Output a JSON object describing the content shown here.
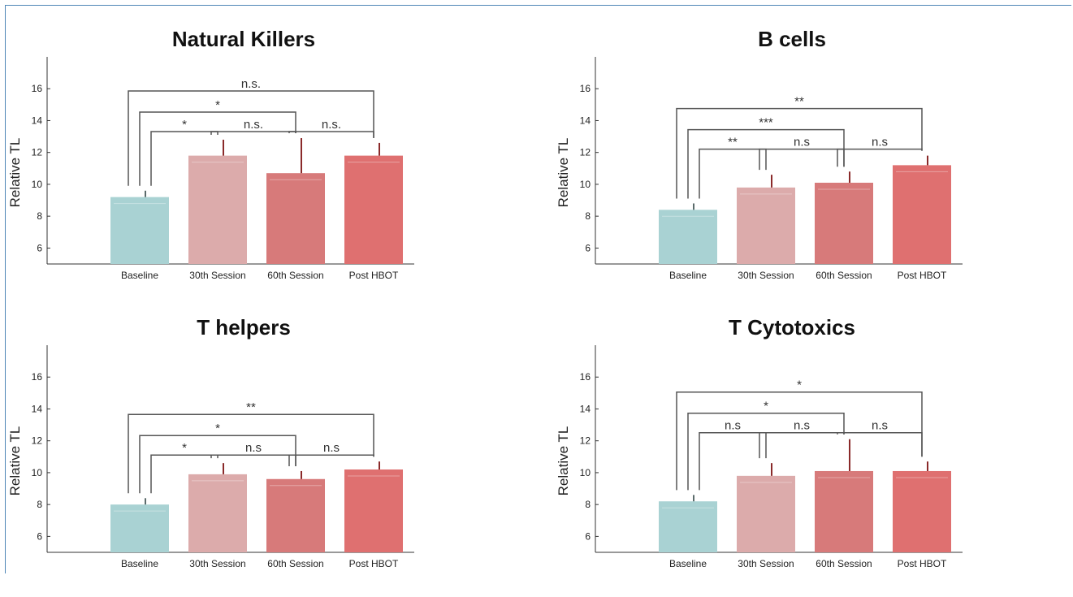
{
  "chart_data": [
    {
      "type": "bar",
      "title": "Natural Killers",
      "ylabel": "Relative TL",
      "ylim": [
        5,
        18
      ],
      "yticks": [
        6,
        8,
        10,
        12,
        14,
        16
      ],
      "categories": [
        "Baseline",
        "30th Session",
        "60th Session",
        "Post HBOT"
      ],
      "values": [
        9.2,
        11.8,
        10.7,
        11.8
      ],
      "error_upper": [
        9.6,
        12.8,
        12.9,
        12.6
      ],
      "colors": [
        "#a9d2d3",
        "#dcabab",
        "#d77a7a",
        "#df7070"
      ],
      "brackets": [
        {
          "from": 0,
          "to": 3,
          "label": "n.s.",
          "level": 3
        },
        {
          "from": 0,
          "to": 2,
          "label": "*",
          "level": 2
        },
        {
          "from": 0,
          "to": 1,
          "label": "*",
          "level": 1
        },
        {
          "from": 1,
          "to": 2,
          "label": "n.s.",
          "level": 1
        },
        {
          "from": 2,
          "to": 3,
          "label": "n.s.",
          "level": 1
        }
      ]
    },
    {
      "type": "bar",
      "title": "B cells",
      "ylabel": "Relative TL",
      "ylim": [
        5,
        18
      ],
      "yticks": [
        6,
        8,
        10,
        12,
        14,
        16
      ],
      "categories": [
        "Baseline",
        "30th Session",
        "60th Session",
        "Post HBOT"
      ],
      "values": [
        8.4,
        9.8,
        10.1,
        11.2
      ],
      "error_upper": [
        8.8,
        10.6,
        10.8,
        11.8
      ],
      "colors": [
        "#a9d2d3",
        "#dcabab",
        "#d77a7a",
        "#df7070"
      ],
      "brackets": [
        {
          "from": 0,
          "to": 3,
          "label": "**",
          "level": 3
        },
        {
          "from": 0,
          "to": 2,
          "label": "***",
          "level": 2
        },
        {
          "from": 0,
          "to": 1,
          "label": "**",
          "level": 1
        },
        {
          "from": 1,
          "to": 2,
          "label": "n.s",
          "level": 1
        },
        {
          "from": 2,
          "to": 3,
          "label": "n.s",
          "level": 1
        }
      ]
    },
    {
      "type": "bar",
      "title": "T helpers",
      "ylabel": "Relative TL",
      "ylim": [
        5,
        18
      ],
      "yticks": [
        6,
        8,
        10,
        12,
        14,
        16
      ],
      "categories": [
        "Baseline",
        "30th Session",
        "60th Session",
        "Post HBOT"
      ],
      "values": [
        8.0,
        9.9,
        9.6,
        10.2
      ],
      "error_upper": [
        8.4,
        10.6,
        10.1,
        10.7
      ],
      "colors": [
        "#a9d2d3",
        "#dcabab",
        "#d77a7a",
        "#df7070"
      ],
      "brackets": [
        {
          "from": 0,
          "to": 3,
          "label": "**",
          "level": 3
        },
        {
          "from": 0,
          "to": 2,
          "label": "*",
          "level": 2
        },
        {
          "from": 0,
          "to": 1,
          "label": "*",
          "level": 1
        },
        {
          "from": 1,
          "to": 2,
          "label": "n.s",
          "level": 1
        },
        {
          "from": 2,
          "to": 3,
          "label": "n.s",
          "level": 1
        }
      ]
    },
    {
      "type": "bar",
      "title": "T Cytotoxics",
      "ylabel": "Relative TL",
      "ylim": [
        5,
        18
      ],
      "yticks": [
        6,
        8,
        10,
        12,
        14,
        16
      ],
      "categories": [
        "Baseline",
        "30th Session",
        "60th Session",
        "Post HBOT"
      ],
      "values": [
        8.2,
        9.8,
        10.1,
        10.1
      ],
      "error_upper": [
        8.6,
        10.6,
        12.1,
        10.7
      ],
      "colors": [
        "#a9d2d3",
        "#dcabab",
        "#d77a7a",
        "#df7070"
      ],
      "brackets": [
        {
          "from": 0,
          "to": 3,
          "label": "*",
          "level": 3
        },
        {
          "from": 0,
          "to": 2,
          "label": "*",
          "level": 2
        },
        {
          "from": 0,
          "to": 1,
          "label": "n.s",
          "level": 1
        },
        {
          "from": 1,
          "to": 2,
          "label": "n.s",
          "level": 1
        },
        {
          "from": 2,
          "to": 3,
          "label": "n.s",
          "level": 1
        }
      ]
    }
  ]
}
